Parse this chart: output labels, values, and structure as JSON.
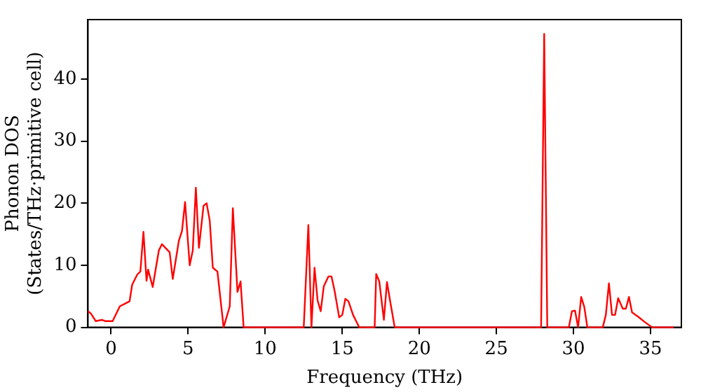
{
  "chart_data": {
    "type": "line",
    "xlabel": "Frequency (THz)",
    "ylabel": [
      "Phonon DOS",
      "(States/THz·primitive cell)"
    ],
    "xlim": [
      -1.5,
      37
    ],
    "xticks": [
      0,
      5,
      10,
      15,
      20,
      25,
      30,
      35
    ],
    "ylim": [
      0,
      49.6
    ],
    "yticks": [
      0,
      10,
      20,
      30,
      40
    ],
    "grid": false,
    "legend": false,
    "marker": "none",
    "line_style": "solid",
    "series": [
      {
        "color": "#ff0000",
        "x": [
          -1.5,
          -1.3,
          -1.0,
          -0.6,
          -0.4,
          0.1,
          0.57,
          0.9,
          1.2,
          1.37,
          1.7,
          1.9,
          2.1,
          2.3,
          2.4,
          2.7,
          3.1,
          3.3,
          3.8,
          4.0,
          4.4,
          4.6,
          4.8,
          5.1,
          5.3,
          5.5,
          5.7,
          6.0,
          6.2,
          6.4,
          6.6,
          6.9,
          7.3,
          7.7,
          7.9,
          8.2,
          8.4,
          8.6,
          12.5,
          12.8,
          13.0,
          13.2,
          13.4,
          13.6,
          13.8,
          14.1,
          14.3,
          14.5,
          14.8,
          15.0,
          15.2,
          15.4,
          15.7,
          16.1,
          17.1,
          17.2,
          17.4,
          17.7,
          17.9,
          18.1,
          18.4,
          27.9,
          28.1,
          28.3,
          29.7,
          29.9,
          30.1,
          30.3,
          30.5,
          30.7,
          30.9,
          31.9,
          32.1,
          32.3,
          32.5,
          32.7,
          32.9,
          33.2,
          33.4,
          33.6,
          33.8,
          34.2,
          34.6,
          35.1,
          36.5
        ],
        "values": [
          2.6,
          2.2,
          1.0,
          1.2,
          1.0,
          1.0,
          3.4,
          3.8,
          4.2,
          6.9,
          8.5,
          9.0,
          15.4,
          7.5,
          9.3,
          6.5,
          12.4,
          13.4,
          12.1,
          7.8,
          14.0,
          15.5,
          20.2,
          10.0,
          12.4,
          22.5,
          12.8,
          19.6,
          20.0,
          17.2,
          9.6,
          9.0,
          0,
          3.4,
          19.2,
          5.7,
          7.4,
          0,
          0,
          16.5,
          0,
          9.6,
          4.3,
          2.6,
          6.6,
          8.2,
          8.2,
          5.9,
          1.6,
          2.0,
          4.6,
          4.2,
          2.0,
          0,
          0,
          8.6,
          7.4,
          1.2,
          7.3,
          4.3,
          0,
          0,
          47.3,
          0,
          0,
          2.6,
          2.7,
          0,
          4.9,
          3.3,
          0,
          0,
          2.0,
          7.1,
          2.0,
          2.0,
          4.7,
          3.0,
          3.0,
          4.9,
          2.4,
          1.7,
          0.9,
          0,
          0
        ]
      }
    ]
  }
}
